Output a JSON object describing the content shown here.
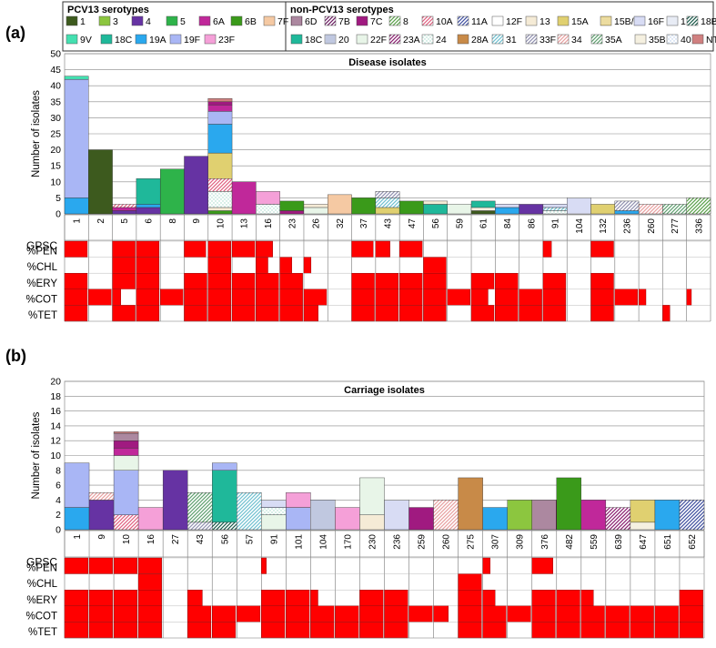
{
  "figure": {
    "panel_a_label": "(a)",
    "panel_b_label": "(b)"
  },
  "legend": {
    "pcv13_title": "PCV13 serotypes",
    "non_pcv13_title": "non-PCV13 serotypes",
    "pcv13": [
      {
        "name": "1",
        "color": "#3d5a1e",
        "pattern": "solid"
      },
      {
        "name": "3",
        "color": "#8cc63f",
        "pattern": "solid"
      },
      {
        "name": "4",
        "color": "#6633a3",
        "pattern": "solid"
      },
      {
        "name": "5",
        "color": "#2eb34a",
        "pattern": "solid"
      },
      {
        "name": "6A",
        "color": "#c0289a",
        "pattern": "solid"
      },
      {
        "name": "6B",
        "color": "#3a9a1a",
        "pattern": "solid"
      },
      {
        "name": "7F",
        "color": "#f5c9a3",
        "pattern": "solid"
      },
      {
        "name": "9V",
        "color": "#44e0b0",
        "pattern": "solid"
      },
      {
        "name": "18C",
        "color": "#1fb89a",
        "pattern": "solid"
      },
      {
        "name": "19A",
        "color": "#2aa8ee",
        "pattern": "solid"
      },
      {
        "name": "19F",
        "color": "#a9b6f5",
        "pattern": "solid"
      },
      {
        "name": "23F",
        "color": "#f5a0d8",
        "pattern": "solid"
      }
    ],
    "non_pcv13": [
      {
        "name": "6D",
        "color": "#5a1040",
        "pattern": "vline"
      },
      {
        "name": "7B",
        "color": "#6a1a60",
        "pattern": "diag"
      },
      {
        "name": "7C",
        "color": "#a01a80",
        "pattern": "solid"
      },
      {
        "name": "8",
        "color": "#5aa04a",
        "pattern": "diag"
      },
      {
        "name": "10A",
        "color": "#e06080",
        "pattern": "diag"
      },
      {
        "name": "11A",
        "color": "#4050a0",
        "pattern": "diag"
      },
      {
        "name": "12F",
        "color": "#ffffff",
        "pattern": "solid"
      },
      {
        "name": "13",
        "color": "#f5ebd6",
        "pattern": "solid"
      },
      {
        "name": "15A",
        "color": "#e0d070",
        "pattern": "solid"
      },
      {
        "name": "15B/C",
        "color": "#d8b840",
        "pattern": "hline"
      },
      {
        "name": "16F",
        "color": "#b0b8e8",
        "pattern": "hline"
      },
      {
        "name": "17F",
        "color": "#e8ecf5",
        "pattern": "solid"
      },
      {
        "name": "18B",
        "color": "#1a5a4a",
        "pattern": "diag"
      },
      {
        "name": "18C",
        "color": "#1a6a6a",
        "pattern": "diag"
      },
      {
        "name": "20",
        "color": "#8090c0",
        "pattern": "vline"
      },
      {
        "name": "22F",
        "color": "#e8f5e8",
        "pattern": "solid"
      },
      {
        "name": "23A",
        "color": "#8a2070",
        "pattern": "diag"
      },
      {
        "name": "24",
        "color": "#a0d8c8",
        "pattern": "dots"
      },
      {
        "name": "28A",
        "color": "#c88a48",
        "pattern": "solid"
      },
      {
        "name": "31",
        "color": "#70c0d0",
        "pattern": "diag"
      },
      {
        "name": "33F",
        "color": "#9090b0",
        "pattern": "diag"
      },
      {
        "name": "34",
        "color": "#e8a0a0",
        "pattern": "diag"
      },
      {
        "name": "35A",
        "color": "#60a070",
        "pattern": "diag"
      },
      {
        "name": "35B",
        "color": "#f5f0e0",
        "pattern": "solid"
      },
      {
        "name": "40",
        "color": "#b0c8e8",
        "pattern": "dots"
      },
      {
        "name": "NT",
        "color": "#d08080",
        "pattern": "solid"
      }
    ]
  },
  "chart_data": [
    {
      "type": "bar",
      "panel": "a",
      "title": "Disease isolates",
      "ylabel": "Number of isolates",
      "ylim": [
        0,
        50
      ],
      "yticks": [
        0,
        5,
        10,
        15,
        20,
        25,
        30,
        35,
        40,
        45,
        50
      ],
      "grid": true,
      "row_header": "GPSC",
      "categories": [
        "1",
        "2",
        "5",
        "6",
        "8",
        "9",
        "10",
        "13",
        "16",
        "23",
        "26",
        "32",
        "37",
        "43",
        "47",
        "56",
        "59",
        "61",
        "84",
        "86",
        "91",
        "104",
        "132",
        "236",
        "260",
        "277",
        "336"
      ],
      "stacks": [
        [
          {
            "s": "19A",
            "v": 5
          },
          {
            "s": "19F",
            "v": 37
          },
          {
            "s": "9V",
            "v": 1
          }
        ],
        [
          {
            "s": "1",
            "v": 20
          }
        ],
        [
          {
            "s": "4",
            "v": 1
          },
          {
            "s": "6A",
            "v": 1
          },
          {
            "s": "10A",
            "v": 1
          }
        ],
        [
          {
            "s": "4",
            "v": 2
          },
          {
            "s": "19A",
            "v": 1
          },
          {
            "s": "18C",
            "v": 8
          }
        ],
        [
          {
            "s": "5",
            "v": 14
          }
        ],
        [
          {
            "s": "4",
            "v": 18
          }
        ],
        [
          {
            "s": "6B",
            "v": 1
          },
          {
            "s": "13",
            "v": 1
          },
          {
            "s": "24",
            "v": 5
          },
          {
            "s": "10A",
            "v": 4
          },
          {
            "s": "15A",
            "v": 8
          },
          {
            "s": "19A",
            "v": 9
          },
          {
            "s": "19F",
            "v": 4
          },
          {
            "s": "6A",
            "v": 2
          },
          {
            "s": "7C",
            "v": 1
          },
          {
            "s": "NT",
            "v": 1
          }
        ],
        [
          {
            "s": "6A",
            "v": 10
          }
        ],
        [
          {
            "s": "24",
            "v": 3
          },
          {
            "s": "23F",
            "v": 4
          }
        ],
        [
          {
            "s": "7C",
            "v": 1
          },
          {
            "s": "6B",
            "v": 3
          }
        ],
        [
          {
            "s": "22F",
            "v": 2
          },
          {
            "s": "13",
            "v": 1
          }
        ],
        [
          {
            "s": "7F",
            "v": 6
          }
        ],
        [
          {
            "s": "6B",
            "v": 5
          }
        ],
        [
          {
            "s": "15A",
            "v": 2
          },
          {
            "s": "31",
            "v": 3
          },
          {
            "s": "33F",
            "v": 2
          }
        ],
        [
          {
            "s": "6B",
            "v": 4
          }
        ],
        [
          {
            "s": "18C",
            "v": 3
          },
          {
            "s": "13",
            "v": 1
          }
        ],
        [
          {
            "s": "22F",
            "v": 3
          }
        ],
        [
          {
            "s": "1",
            "v": 1
          },
          {
            "s": "35B",
            "v": 1
          },
          {
            "s": "18C",
            "v": 2
          }
        ],
        [
          {
            "s": "19A",
            "v": 2
          },
          {
            "s": "16F",
            "v": 1
          }
        ],
        [
          {
            "s": "4",
            "v": 3
          }
        ],
        [
          {
            "s": "24",
            "v": 1
          },
          {
            "s": "31",
            "v": 1
          },
          {
            "s": "16F",
            "v": 1
          }
        ],
        [
          {
            "s": "16F",
            "v": 5
          }
        ],
        [
          {
            "s": "15A",
            "v": 3
          }
        ],
        [
          {
            "s": "19A",
            "v": 1
          },
          {
            "s": "33F",
            "v": 3
          }
        ],
        [
          {
            "s": "34",
            "v": 3
          }
        ],
        [
          {
            "s": "35A",
            "v": 3
          }
        ],
        [
          {
            "s": "8",
            "v": 5
          }
        ]
      ],
      "heatmap_rows": [
        "%PEN",
        "%CHL",
        "%ERY",
        "%COT",
        "%TET"
      ],
      "heatmap_fill": [
        [
          0.95,
          0,
          0.95,
          0.95,
          0,
          0.9,
          0.95,
          0.95,
          0.7,
          0,
          0,
          0,
          0.9,
          0.6,
          0.95,
          0,
          0,
          0,
          0,
          0,
          0.35,
          0,
          0.95,
          0,
          0,
          0,
          0
        ],
        [
          0,
          0,
          0.95,
          0.95,
          0,
          0,
          0.95,
          0,
          0.5,
          0.5,
          0.3,
          0,
          0,
          0,
          0,
          0.95,
          0,
          0,
          0,
          0,
          0,
          0,
          0,
          0,
          0,
          0,
          0
        ],
        [
          0.95,
          0,
          0.95,
          0.95,
          0,
          0.95,
          0.95,
          0.95,
          0.95,
          0.95,
          0,
          0,
          0.95,
          0.95,
          0.95,
          0.95,
          0,
          0.95,
          0.95,
          0,
          0.95,
          0,
          0.95,
          0,
          0,
          0,
          0
        ],
        [
          0.95,
          0.95,
          0.35,
          0.95,
          0.95,
          0.95,
          0.95,
          0.95,
          0.95,
          0.95,
          0.95,
          0,
          0.95,
          0.95,
          0.95,
          0.95,
          0.95,
          0.7,
          0.95,
          0.95,
          0.95,
          0,
          0.95,
          0.95,
          0.3,
          0,
          0.2
        ],
        [
          0.95,
          0,
          0.95,
          0.95,
          0,
          0.95,
          0.95,
          0.95,
          0.95,
          0.95,
          0.6,
          0,
          0.95,
          0.95,
          0.95,
          0.95,
          0,
          0.95,
          0.95,
          0.95,
          0.95,
          0,
          0.95,
          0,
          0,
          0.3,
          0
        ]
      ]
    },
    {
      "type": "bar",
      "panel": "b",
      "title": "Carriage isolates",
      "ylabel": "Number of isolates",
      "ylim": [
        0,
        20
      ],
      "yticks": [
        0,
        2,
        4,
        6,
        8,
        10,
        12,
        14,
        16,
        18,
        20
      ],
      "grid": true,
      "row_header": "GPSC",
      "categories": [
        "1",
        "9",
        "10",
        "16",
        "27",
        "43",
        "56",
        "57",
        "91",
        "101",
        "104",
        "170",
        "230",
        "236",
        "259",
        "260",
        "275",
        "307",
        "309",
        "376",
        "482",
        "559",
        "639",
        "647",
        "651",
        "652"
      ],
      "stacks": [
        [
          {
            "s": "19A",
            "v": 3
          },
          {
            "s": "19F",
            "v": 6
          }
        ],
        [
          {
            "s": "4",
            "v": 4
          },
          {
            "s": "34",
            "v": 1
          }
        ],
        [
          {
            "s": "10A",
            "v": 2
          },
          {
            "s": "19F",
            "v": 6
          },
          {
            "s": "22F",
            "v": 2
          },
          {
            "s": "6A",
            "v": 1
          },
          {
            "s": "7C",
            "v": 1
          },
          {
            "s": "6D",
            "v": 1
          },
          {
            "s": "NT",
            "v": 0.2
          }
        ],
        [
          {
            "s": "23F",
            "v": 3
          }
        ],
        [
          {
            "s": "4",
            "v": 8
          }
        ],
        [
          {
            "s": "33F",
            "v": 1
          },
          {
            "s": "35A",
            "v": 4
          }
        ],
        [
          {
            "s": "18B",
            "v": 1
          },
          {
            "s": "18C",
            "v": 7
          },
          {
            "s": "19F",
            "v": 1
          }
        ],
        [
          {
            "s": "31",
            "v": 5
          }
        ],
        [
          {
            "s": "22F",
            "v": 2
          },
          {
            "s": "24",
            "v": 1
          },
          {
            "s": "16F",
            "v": 1
          }
        ],
        [
          {
            "s": "19F",
            "v": 3
          },
          {
            "s": "23F",
            "v": 2
          }
        ],
        [
          {
            "s": "20",
            "v": 4
          }
        ],
        [
          {
            "s": "23F",
            "v": 3
          }
        ],
        [
          {
            "s": "13",
            "v": 2
          },
          {
            "s": "22F",
            "v": 5
          }
        ],
        [
          {
            "s": "16F",
            "v": 4
          }
        ],
        [
          {
            "s": "7C",
            "v": 3
          }
        ],
        [
          {
            "s": "34",
            "v": 4
          }
        ],
        [
          {
            "s": "28A",
            "v": 7
          }
        ],
        [
          {
            "s": "19A",
            "v": 3
          }
        ],
        [
          {
            "s": "3",
            "v": 4
          }
        ],
        [
          {
            "s": "6D",
            "v": 4
          }
        ],
        [
          {
            "s": "6B",
            "v": 7
          }
        ],
        [
          {
            "s": "6A",
            "v": 4
          }
        ],
        [
          {
            "s": "23A",
            "v": 3
          }
        ],
        [
          {
            "s": "35B",
            "v": 1
          },
          {
            "s": "15A",
            "v": 3
          }
        ],
        [
          {
            "s": "19A",
            "v": 4
          }
        ],
        [
          {
            "s": "11A",
            "v": 4
          }
        ]
      ],
      "heatmap_rows": [
        "%PEN",
        "%CHL",
        "%ERY",
        "%COT",
        "%TET"
      ],
      "heatmap_fill": [
        [
          0.95,
          0.95,
          0.95,
          0.95,
          0,
          0,
          0,
          0,
          0.2,
          0,
          0,
          0,
          0,
          0,
          0,
          0,
          0,
          0.3,
          0,
          0.85,
          0,
          0,
          0,
          0,
          0,
          0
        ],
        [
          0,
          0,
          0,
          0.95,
          0,
          0,
          0,
          0,
          0,
          0,
          0,
          0,
          0,
          0,
          0,
          0,
          0.95,
          0,
          0,
          0,
          0,
          0,
          0,
          0,
          0,
          0
        ],
        [
          0.95,
          0.95,
          0.95,
          0.95,
          0,
          0.6,
          0,
          0,
          0.95,
          0.95,
          0.3,
          0,
          0.95,
          0.95,
          0,
          0,
          0.95,
          0.5,
          0,
          0.95,
          0.95,
          0.5,
          0,
          0,
          0,
          0.95
        ],
        [
          0.95,
          0.95,
          0.95,
          0.95,
          0,
          0.95,
          0.95,
          0.95,
          0.95,
          0.95,
          0.95,
          0.95,
          0.95,
          0.95,
          0.95,
          0.6,
          0.95,
          0.95,
          0.95,
          0.95,
          0.95,
          0.95,
          0.95,
          0.95,
          0.95,
          0.95
        ],
        [
          0.95,
          0.95,
          0.95,
          0.95,
          0,
          0.95,
          0.95,
          0,
          0.95,
          0.95,
          0.95,
          0.95,
          0.95,
          0.95,
          0,
          0,
          0.95,
          0.95,
          0,
          0.95,
          0.95,
          0.95,
          0.95,
          0.95,
          0.95,
          0.95
        ]
      ]
    }
  ]
}
